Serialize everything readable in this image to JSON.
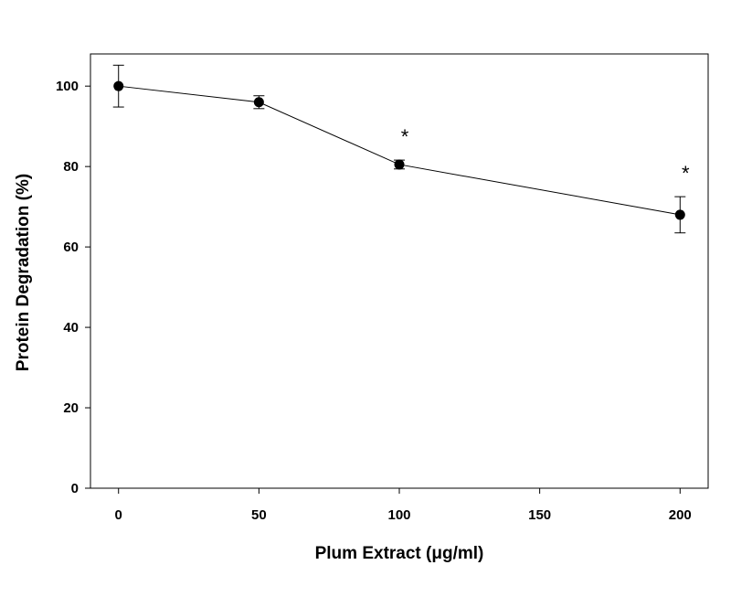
{
  "chart_data": {
    "type": "line",
    "xlabel": "Plum Extract (μg/ml)",
    "ylabel": "Protein Degradation (%)",
    "xlim": [
      -10,
      210
    ],
    "ylim": [
      0,
      108
    ],
    "xticks": [
      0,
      50,
      100,
      150,
      200
    ],
    "yticks": [
      0,
      20,
      40,
      60,
      80,
      100
    ],
    "grid": false,
    "legend": "none",
    "series": [
      {
        "x": [
          0,
          50,
          100,
          200
        ],
        "y": [
          100,
          96,
          80.5,
          68
        ],
        "error": [
          5.2,
          1.6,
          1.1,
          4.5
        ],
        "significance": [
          "",
          "",
          "*",
          "*"
        ]
      }
    ],
    "colors": {
      "line": "#000000",
      "marker": "#000000"
    }
  }
}
